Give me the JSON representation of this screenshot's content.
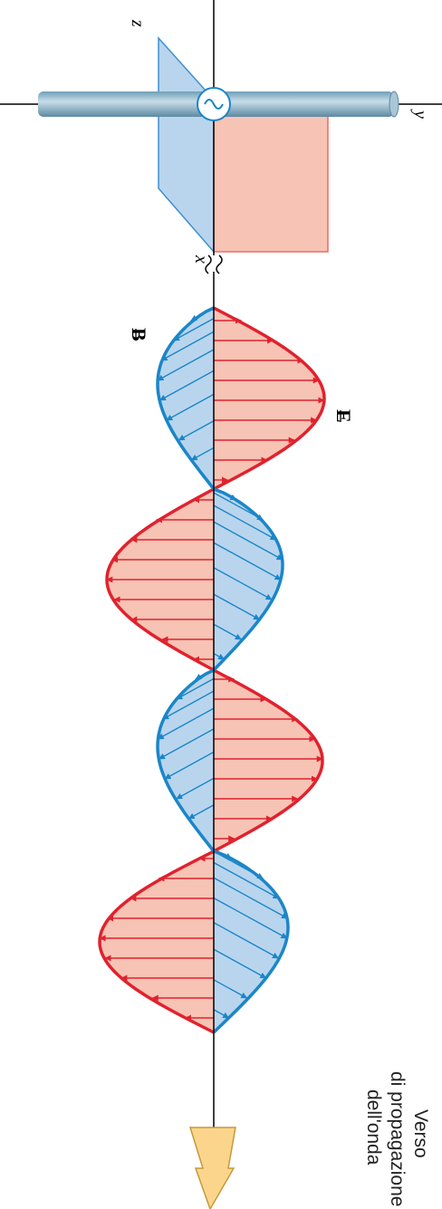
{
  "axes": {
    "z": "z",
    "y": "y",
    "x": "x"
  },
  "fields": {
    "magnetic": "B",
    "electric": "E"
  },
  "caption": {
    "lines": [
      "Verso",
      "di propagazione",
      "dell'onda"
    ]
  }
}
